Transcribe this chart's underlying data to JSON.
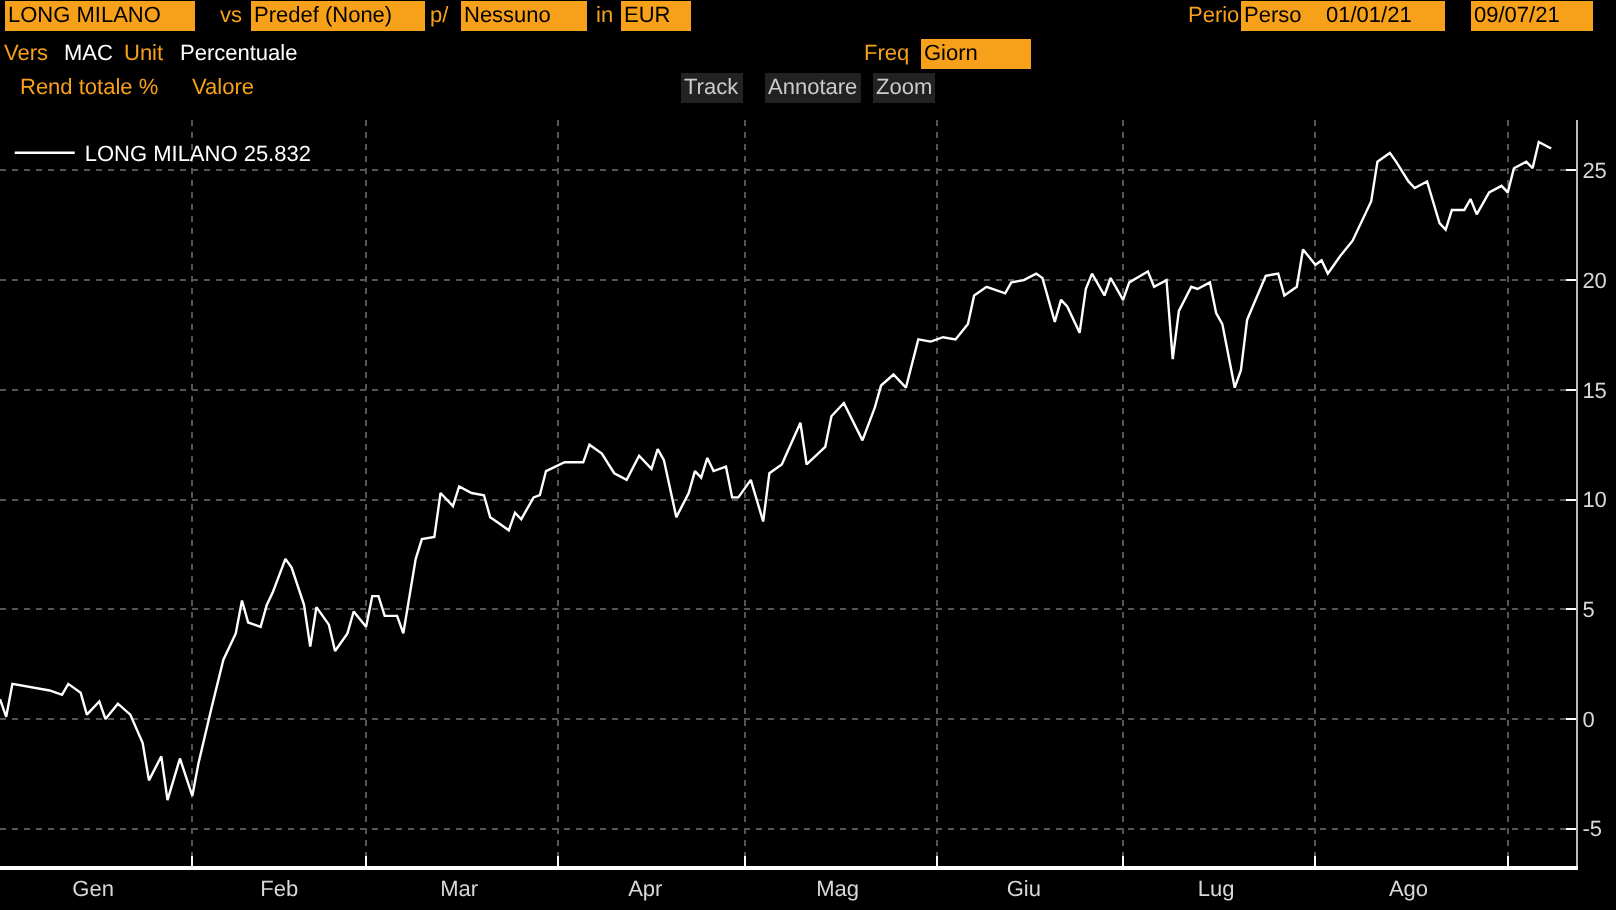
{
  "chart_data": {
    "type": "line",
    "annotations": [
      "LONG MILANO",
      "vs",
      "Predef (None)",
      "p/",
      "Nessuno",
      "in",
      "EUR",
      "Perio",
      "Perso",
      "01/01/21",
      "09/07/21",
      "Vers",
      "MAC",
      "Unit",
      "Percentuale",
      "Freq",
      "Giorn",
      "Rend totale %",
      "Valore",
      "Track",
      "Annotare",
      "Zoom"
    ],
    "x": [
      "--01-01",
      "--01-02",
      "--01-03",
      "--01-09",
      "--01-11",
      "--01-12",
      "--01-14",
      "--01-15",
      "--01-17",
      "--01-18",
      "--01-20",
      "--01-22",
      "--01-24",
      "--01-25",
      "--01-27",
      "--01-28",
      "--01-30",
      "--02-01",
      "--02-02",
      "--02-04",
      "--02-06",
      "--02-08",
      "--02-09",
      "--02-10",
      "--02-12",
      "--02-13",
      "--02-14",
      "--02-16",
      "--02-17",
      "--02-19",
      "--02-20",
      "--02-21",
      "--02-23",
      "--02-24",
      "--02-26",
      "--02-27",
      "--03-01",
      "--03-02",
      "--03-03",
      "--03-04",
      "--03-06",
      "--03-07",
      "--03-09",
      "--03-10",
      "--03-12",
      "--03-13",
      "--03-15",
      "--03-16",
      "--03-18",
      "--03-20",
      "--03-21",
      "--03-22",
      "--03-24",
      "--03-25",
      "--03-26",
      "--03-28",
      "--03-29",
      "--03-30",
      "--04-02",
      "--04-05",
      "--04-06",
      "--04-08",
      "--04-10",
      "--04-12",
      "--04-14",
      "--04-16",
      "--04-17",
      "--04-18",
      "--04-20",
      "--04-22",
      "--04-23",
      "--04-24",
      "--04-25",
      "--04-26",
      "--04-28",
      "--04-29",
      "--04-30",
      "--05-02",
      "--05-04",
      "--05-05",
      "--05-07",
      "--05-10",
      "--05-11",
      "--05-14",
      "--05-15",
      "--05-17",
      "--05-20",
      "--05-22",
      "--05-23",
      "--05-25",
      "--05-27",
      "--05-29",
      "--05-31",
      "--06-02",
      "--06-04",
      "--06-06",
      "--06-07",
      "--06-09",
      "--06-12",
      "--06-13",
      "--06-15",
      "--06-17",
      "--06-18",
      "--06-20",
      "--06-21",
      "--06-22",
      "--06-24",
      "--06-25",
      "--06-26",
      "--06-28",
      "--06-29",
      "--07-01",
      "--07-02",
      "--07-05",
      "--07-06",
      "--07-08",
      "--07-09",
      "--07-10",
      "--07-12",
      "--07-13",
      "--07-15",
      "--07-16",
      "--07-17",
      "--07-19",
      "--07-20",
      "--07-21",
      "--07-24",
      "--07-26",
      "--07-27",
      "--07-29",
      "--07-30",
      "--08-01",
      "--08-02",
      "--08-03",
      "--08-05",
      "--08-07",
      "--08-10",
      "--08-11",
      "--08-13",
      "--08-14",
      "--08-16",
      "--08-17",
      "--08-19",
      "--08-21",
      "--08-22",
      "--08-23",
      "--08-25",
      "--08-26",
      "--08-27",
      "--08-29",
      "--08-31",
      "--09-01",
      "--09-02",
      "--09-04",
      "--09-05",
      "--09-06",
      "--09-08"
    ],
    "series": [
      {
        "name": "LONG MILANO 25.832",
        "color": "#ffffff",
        "values": [
          0.9,
          0.1,
          1.6,
          1.3,
          1.1,
          1.6,
          1.2,
          0.2,
          0.8,
          0.0,
          0.7,
          0.2,
          -1.1,
          -2.8,
          -1.7,
          -3.7,
          -1.8,
          -3.5,
          -2.0,
          0.4,
          2.7,
          3.9,
          5.4,
          4.4,
          4.2,
          5.2,
          5.8,
          7.3,
          6.9,
          5.2,
          3.3,
          5.1,
          4.3,
          3.1,
          3.9,
          4.9,
          4.2,
          5.6,
          5.6,
          4.7,
          4.7,
          3.9,
          7.3,
          8.2,
          8.3,
          10.3,
          9.7,
          10.6,
          10.3,
          10.2,
          9.2,
          9.0,
          8.6,
          9.4,
          9.1,
          10.1,
          10.2,
          11.3,
          11.7,
          11.7,
          12.5,
          12.1,
          11.2,
          10.9,
          12.0,
          11.4,
          12.3,
          11.8,
          9.2,
          10.3,
          11.3,
          11.0,
          11.9,
          11.3,
          11.5,
          10.1,
          10.1,
          10.9,
          9.0,
          11.2,
          11.6,
          13.5,
          11.6,
          12.4,
          13.8,
          14.4,
          12.7,
          14.2,
          15.2,
          15.7,
          15.1,
          17.3,
          17.2,
          17.4,
          17.3,
          18.0,
          19.3,
          19.7,
          19.4,
          19.9,
          20.0,
          20.3,
          20.1,
          18.1,
          19.1,
          18.8,
          17.6,
          19.6,
          20.3,
          19.3,
          20.1,
          19.1,
          19.9,
          20.4,
          19.7,
          20.0,
          16.4,
          18.6,
          19.7,
          19.6,
          19.9,
          18.5,
          18.0,
          15.1,
          15.9,
          18.2,
          20.2,
          20.3,
          19.3,
          19.7,
          21.4,
          20.7,
          20.9,
          20.3,
          21.1,
          21.8,
          23.6,
          25.4,
          25.8,
          25.4,
          24.5,
          24.2,
          24.5,
          22.6,
          22.3,
          23.2,
          23.2,
          23.7,
          23.0,
          24.0,
          24.3,
          24.0,
          25.1,
          25.4,
          25.1,
          26.3,
          26.0
        ]
      }
    ],
    "xlim": [
      "--01-01",
      "--09-12"
    ],
    "xticks": [
      {
        "value": "--01-16",
        "label": "Gen"
      },
      {
        "value": "--02-01",
        "label": null
      },
      {
        "value": "--02-15",
        "label": "Feb"
      },
      {
        "value": "--03-01",
        "label": null
      },
      {
        "value": "--03-16",
        "label": "Mar"
      },
      {
        "value": "--04-01",
        "label": null
      },
      {
        "value": "--04-15",
        "label": "Apr"
      },
      {
        "value": "--05-01",
        "label": null
      },
      {
        "value": "--05-16",
        "label": "Mag"
      },
      {
        "value": "--06-01",
        "label": null
      },
      {
        "value": "--06-15",
        "label": "Giu"
      },
      {
        "value": "--07-01",
        "label": null
      },
      {
        "value": "--07-16",
        "label": "Lug"
      },
      {
        "value": "--08-01",
        "label": null
      },
      {
        "value": "--08-16",
        "label": "Ago"
      },
      {
        "value": "--09-01",
        "label": null
      }
    ],
    "ylim": [
      -6.7,
      27.3
    ],
    "yticks": [
      -5,
      0,
      5,
      10,
      15,
      20,
      25
    ],
    "grid": true,
    "legend": "top left",
    "line_style": "solid",
    "marker": "none"
  }
}
